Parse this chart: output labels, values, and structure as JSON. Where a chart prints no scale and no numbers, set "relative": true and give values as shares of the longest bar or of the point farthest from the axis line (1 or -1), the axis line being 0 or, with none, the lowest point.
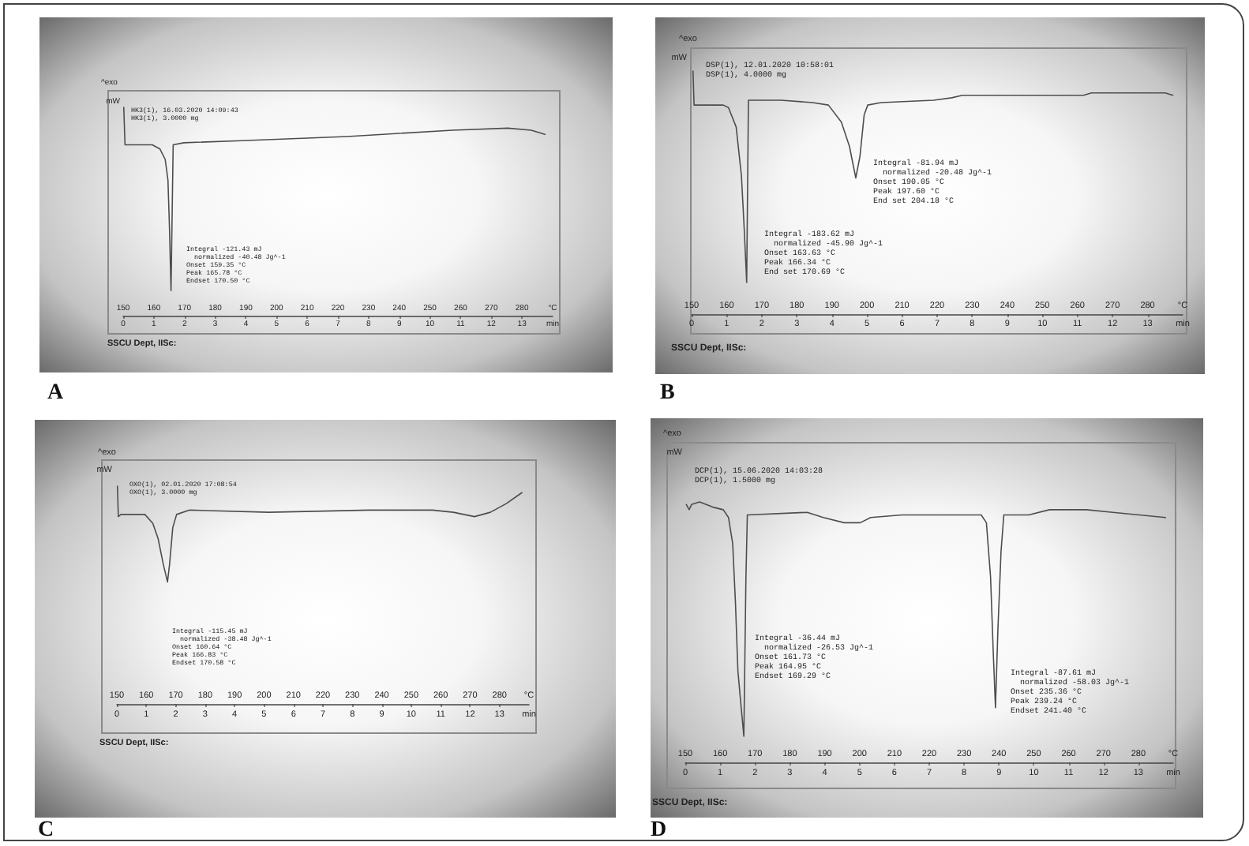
{
  "chart_data": [
    {
      "type": "line",
      "title": "A",
      "ylabel": "mW",
      "xlabel": "°C",
      "x2label": "min",
      "relative": true,
      "xlim": [
        150,
        290
      ],
      "xticks": [
        150,
        160,
        170,
        180,
        190,
        200,
        210,
        220,
        230,
        240,
        250,
        260,
        270,
        280
      ],
      "x2lim": [
        0,
        14
      ],
      "x2ticks": [
        0,
        1,
        2,
        3,
        4,
        5,
        6,
        7,
        8,
        9,
        10,
        11,
        12,
        13
      ],
      "color": "#4d4d4d",
      "x": [
        150.2,
        150.6,
        151.4,
        155.2,
        159.5,
        162.0,
        163.7,
        164.6,
        165.1,
        165.6,
        166.3,
        169.8,
        188.7,
        223.0,
        257.4,
        275.4,
        283.0,
        287.5
      ],
      "values": [
        1,
        0.82,
        0.82,
        0.82,
        0.82,
        0.8,
        0.75,
        0.65,
        0.42,
        0.12,
        0.82,
        0.83,
        0.84,
        0.86,
        0.89,
        0.9,
        0.89,
        0.87
      ],
      "annotations": [
        "^exo",
        "HK3(1), 16.03.2020 14:09:43",
        "HK3(1), 3.0000 mg",
        "Integral -121.43 mJ",
        "normalized -40.48 Jg^-1",
        "Onset 159.35 °C",
        "Peak 165.78 °C",
        "Endset 170.50 °C",
        "SSCU Dept, IISc:"
      ]
    },
    {
      "type": "line",
      "title": "B",
      "ylabel": "mW",
      "xlabel": "°C",
      "x2label": "min",
      "relative": true,
      "xlim": [
        150,
        290
      ],
      "xticks": [
        150,
        160,
        170,
        180,
        190,
        200,
        210,
        220,
        230,
        240,
        250,
        260,
        270,
        280
      ],
      "x2lim": [
        0,
        14
      ],
      "x2ticks": [
        0,
        1,
        2,
        3,
        4,
        5,
        6,
        7,
        8,
        9,
        10,
        11,
        12,
        13
      ],
      "color": "#4d4d4d",
      "x": [
        150.4,
        150.7,
        154.5,
        159.0,
        160.5,
        162.7,
        164.2,
        165.0,
        165.7,
        166.2,
        175.5,
        184.5,
        189.0,
        192.7,
        195.0,
        196.8,
        198.0,
        199.2,
        200.2,
        204.0,
        219.0,
        224.2,
        227.2,
        261.7,
        264.0,
        285.0,
        287.2
      ],
      "values": [
        1,
        0.86,
        0.86,
        0.86,
        0.85,
        0.77,
        0.57,
        0.35,
        0.13,
        0.88,
        0.88,
        0.87,
        0.86,
        0.79,
        0.69,
        0.56,
        0.65,
        0.82,
        0.86,
        0.87,
        0.88,
        0.89,
        0.9,
        0.9,
        0.91,
        0.91,
        0.9
      ],
      "annotations": [
        "^exo",
        "DSP(1), 12.01.2020 10:58:01",
        "DSP(1), 4.0000 mg",
        "Integral -81.94 mJ",
        "normalized -20.48 Jg^-1",
        "Onset 190.05 °C",
        "Peak 197.60 °C",
        "End set 204.18 °C",
        "Integral -183.62 mJ",
        "normalized -45.90 Jg^-1",
        "Onset 163.63 °C",
        "Peak 166.34 °C",
        "End set 170.69 °C",
        "SSCU Dept, IISc:"
      ]
    },
    {
      "type": "line",
      "title": "C",
      "ylabel": "mW",
      "xlabel": "°C",
      "x2label": "min",
      "relative": true,
      "xlim": [
        150,
        290
      ],
      "xticks": [
        150,
        160,
        170,
        180,
        190,
        200,
        210,
        220,
        230,
        240,
        250,
        260,
        270,
        280
      ],
      "x2lim": [
        0,
        14
      ],
      "x2ticks": [
        0,
        1,
        2,
        3,
        4,
        5,
        6,
        7,
        8,
        9,
        10,
        11,
        12,
        13
      ],
      "color": "#4d4d4d",
      "x": [
        150.2,
        150.5,
        151.4,
        156.8,
        159.5,
        162.2,
        164.0,
        165.8,
        167.2,
        167.9,
        169.0,
        170.3,
        174.7,
        201.6,
        235.7,
        246.4,
        257.2,
        264.3,
        271.5,
        276.9,
        282.3,
        287.6
      ],
      "values": [
        1,
        0.86,
        0.87,
        0.87,
        0.87,
        0.83,
        0.76,
        0.64,
        0.56,
        0.64,
        0.81,
        0.87,
        0.89,
        0.88,
        0.89,
        0.89,
        0.89,
        0.88,
        0.86,
        0.88,
        0.92,
        0.97
      ],
      "annotations": [
        "^exo",
        "OXO(1), 02.01.2020 17:08:54",
        "OXO(1), 3.0000 mg",
        "Integral -115.45 mJ",
        "normalized -38.48 Jg^-1",
        "Onset 160.64 °C",
        "Peak 166.83 °C",
        "Endset 170.58 °C",
        "SSCU Dept, IISc:"
      ]
    },
    {
      "type": "line",
      "title": "D",
      "ylabel": "mW",
      "xlabel": "°C",
      "x2label": "min",
      "relative": true,
      "xlim": [
        150,
        290
      ],
      "xticks": [
        150,
        160,
        170,
        180,
        190,
        200,
        210,
        220,
        230,
        240,
        250,
        260,
        270,
        280
      ],
      "x2lim": [
        0,
        14
      ],
      "x2ticks": [
        0,
        1,
        2,
        3,
        4,
        5,
        6,
        7,
        8,
        9,
        10,
        11,
        12,
        13
      ],
      "color": "#4d4d4d",
      "x": [
        150.3,
        151.1,
        151.8,
        154.1,
        157.9,
        160.9,
        162.4,
        163.6,
        164.4,
        165.1,
        165.9,
        166.8,
        167.4,
        167.8,
        185.0,
        189.6,
        195.6,
        200.2,
        203.2,
        212.2,
        222.8,
        228.9,
        234.9,
        236.4,
        237.6,
        238.4,
        239.0,
        239.7,
        240.6,
        241.4,
        242.4,
        248.5,
        254.5,
        265.1,
        272.7,
        287.8
      ],
      "values": [
        0.99,
        0.97,
        0.99,
        1,
        0.98,
        0.97,
        0.94,
        0.84,
        0.61,
        0.35,
        0.23,
        0.1,
        0.71,
        0.95,
        0.96,
        0.94,
        0.92,
        0.92,
        0.94,
        0.95,
        0.95,
        0.95,
        0.95,
        0.92,
        0.71,
        0.41,
        0.21,
        0.51,
        0.81,
        0.95,
        0.95,
        0.95,
        0.97,
        0.97,
        0.96,
        0.94
      ],
      "annotations": [
        "^exo",
        "DCP(1), 15.06.2020 14:03:28",
        "DCP(1), 1.5000 mg",
        "Integral -36.44 mJ",
        "normalized -26.53 Jg^-1",
        "Onset 161.73 °C",
        "Peak 164.95 °C",
        "Endset 169.29 °C",
        "Integral -87.61 mJ",
        "normalized -58.03 Jg^-1",
        "Onset 235.36 °C",
        "Peak 239.24 °C",
        "Endset 241.40 °C",
        "SSCU Dept, IISc:"
      ]
    }
  ]
}
